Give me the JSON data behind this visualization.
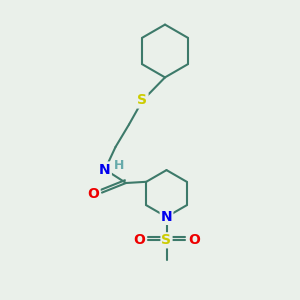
{
  "bg_color": "#eaf0ea",
  "bond_color": "#3d7a6a",
  "S_color": "#cccc00",
  "N_color": "#0000ee",
  "O_color": "#ee0000",
  "H_color": "#66aaaa",
  "line_width": 1.5,
  "font_size_atom": 10,
  "xlim": [
    0,
    10
  ],
  "ylim": [
    0,
    10
  ]
}
